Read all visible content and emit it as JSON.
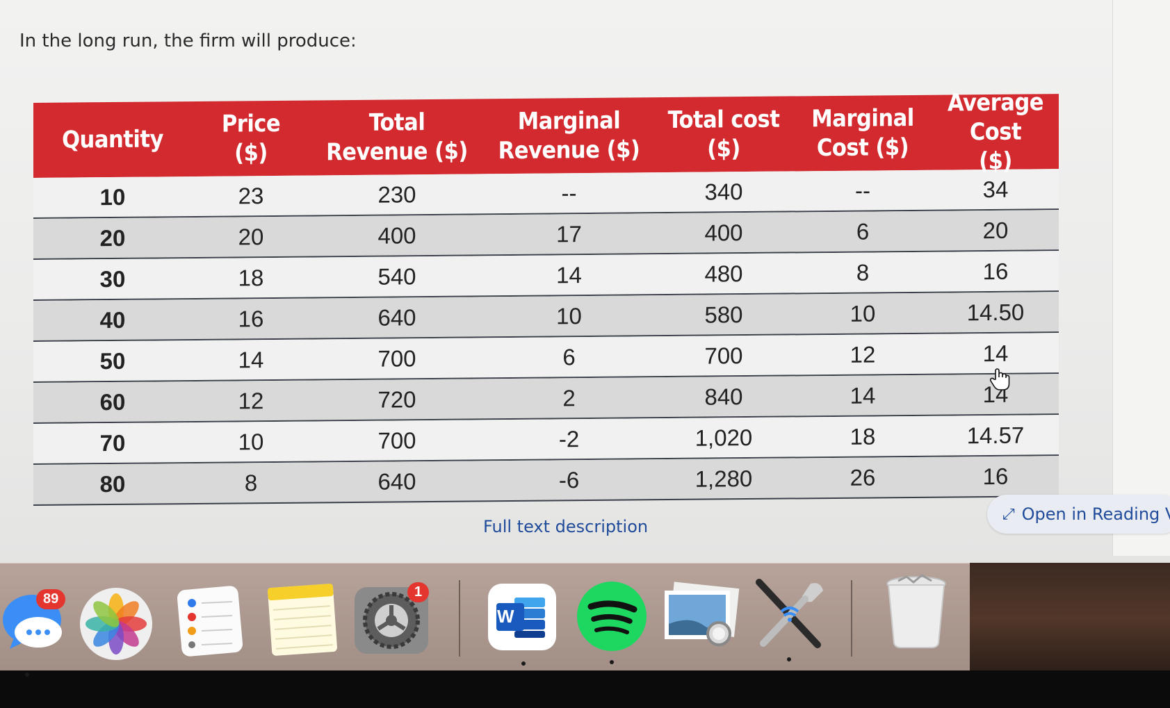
{
  "question": "In the long run, the firm will produce:",
  "table": {
    "headers": [
      "Quantity",
      "Price\n($)",
      "Total\nRevenue ($)",
      "Marginal\nRevenue ($)",
      "Total cost\n($)",
      "Marginal\nCost ($)",
      "Average Cost\n($)"
    ],
    "rows": [
      [
        "10",
        "23",
        "230",
        "--",
        "340",
        "--",
        "34"
      ],
      [
        "20",
        "20",
        "400",
        "17",
        "400",
        "6",
        "20"
      ],
      [
        "30",
        "18",
        "540",
        "14",
        "480",
        "8",
        "16"
      ],
      [
        "40",
        "16",
        "640",
        "10",
        "580",
        "10",
        "14.50"
      ],
      [
        "50",
        "14",
        "700",
        "6",
        "700",
        "12",
        "14"
      ],
      [
        "60",
        "12",
        "720",
        "2",
        "840",
        "14",
        "14"
      ],
      [
        "70",
        "10",
        "700",
        "-2",
        "1,020",
        "18",
        "14.57"
      ],
      [
        "80",
        "8",
        "640",
        "-6",
        "1,280",
        "26",
        "16"
      ]
    ]
  },
  "links": {
    "full_text_description": "Full text description",
    "open_in_reading_view": "Open in Reading Vi"
  },
  "dock": {
    "messages_badge": "89",
    "system_prefs_badge": "1",
    "word_letter": "W",
    "items": [
      "messages-icon",
      "photos-icon",
      "reminders-icon",
      "notes-icon",
      "system-preferences-icon",
      "word-icon",
      "spotify-icon",
      "preview-icon",
      "wireless-diagnostics-icon",
      "trash-icon"
    ]
  },
  "colors": {
    "header_red": "#d22a2e",
    "link_blue": "#1f4b9a"
  }
}
